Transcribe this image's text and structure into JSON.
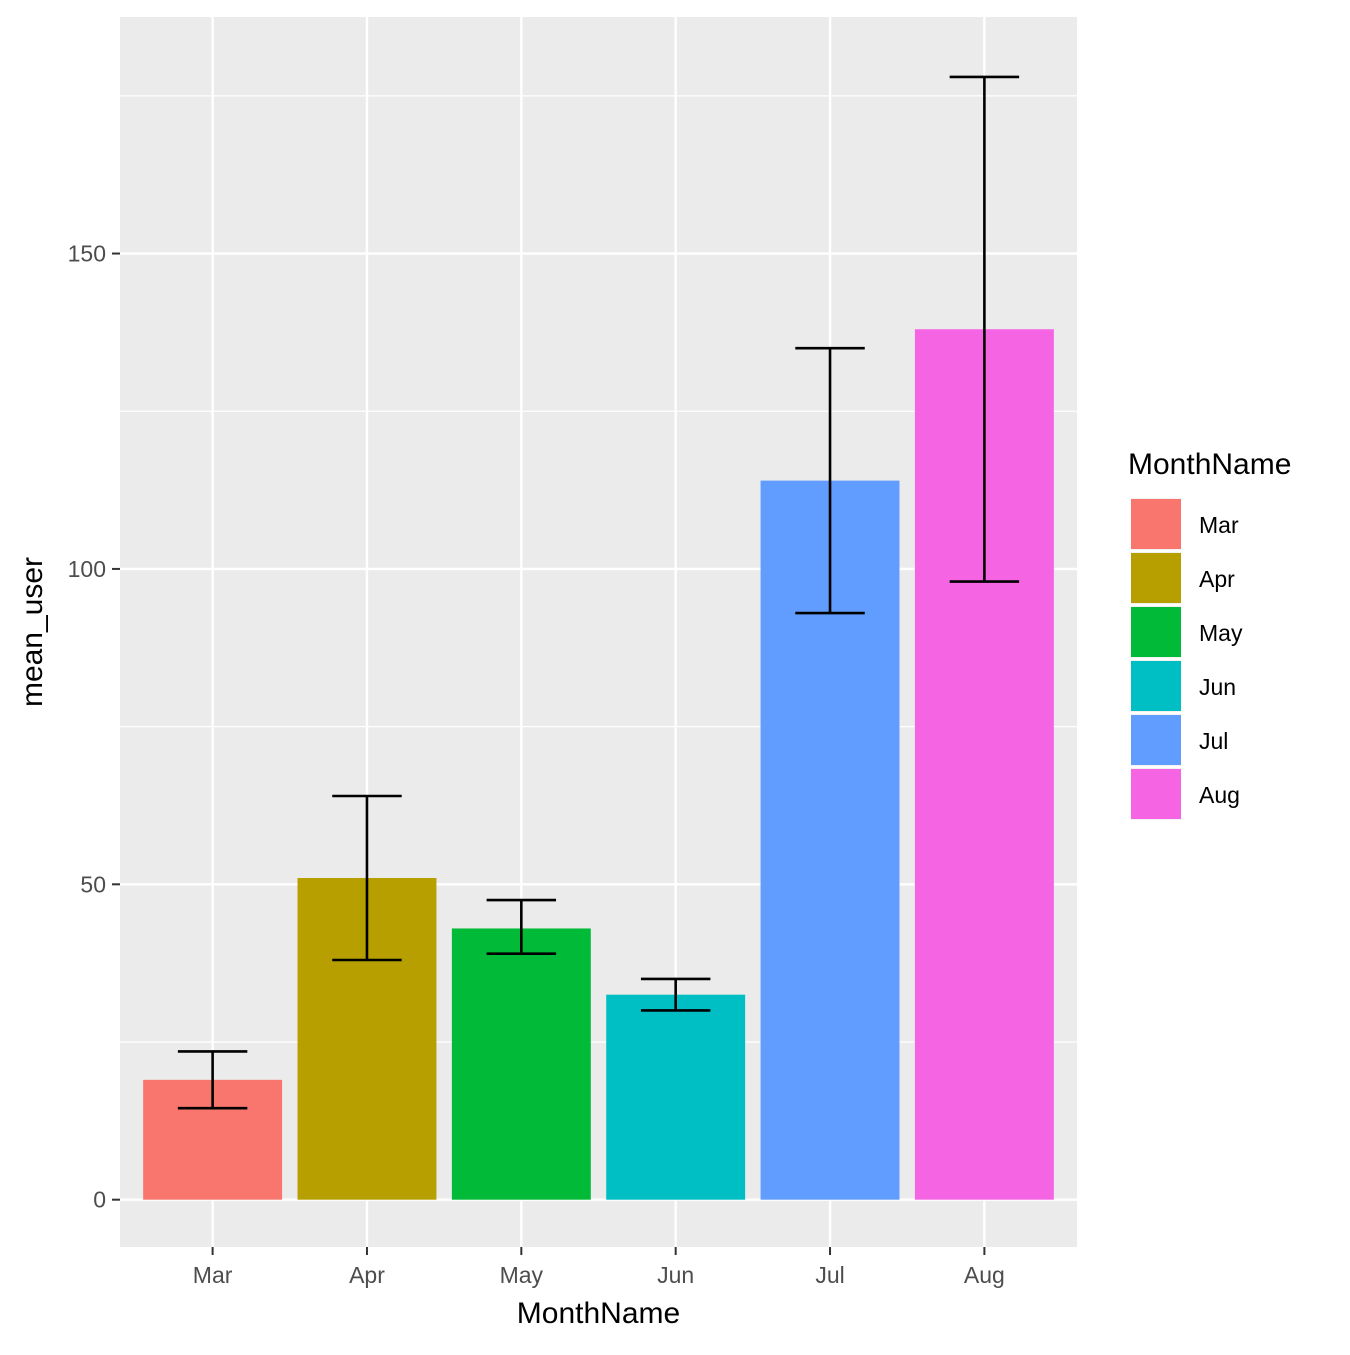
{
  "chart_data": {
    "type": "bar",
    "title": "",
    "xlabel": "MonthName",
    "ylabel": "mean_user",
    "categories": [
      "Mar",
      "Apr",
      "May",
      "Jun",
      "Jul",
      "Aug"
    ],
    "values": [
      19,
      51,
      43,
      32.5,
      114,
      138
    ],
    "error_bars": [
      {
        "low": 14.5,
        "high": 23.5
      },
      {
        "low": 38,
        "high": 64
      },
      {
        "low": 39,
        "high": 47.5
      },
      {
        "low": 30,
        "high": 35
      },
      {
        "low": 93,
        "high": 135
      },
      {
        "low": 98,
        "high": 178
      }
    ],
    "colors": [
      "#F8766D",
      "#B79F00",
      "#00BA38",
      "#00BFC4",
      "#619CFF",
      "#F564E3"
    ],
    "yticks": [
      0,
      50,
      100,
      150
    ],
    "ylim": [
      -7.5,
      187.5
    ],
    "grid": true,
    "background": "#EBEBEB",
    "legend": {
      "title": "MonthName",
      "position": "right",
      "entries": [
        "Mar",
        "Apr",
        "May",
        "Jun",
        "Jul",
        "Aug"
      ]
    }
  }
}
